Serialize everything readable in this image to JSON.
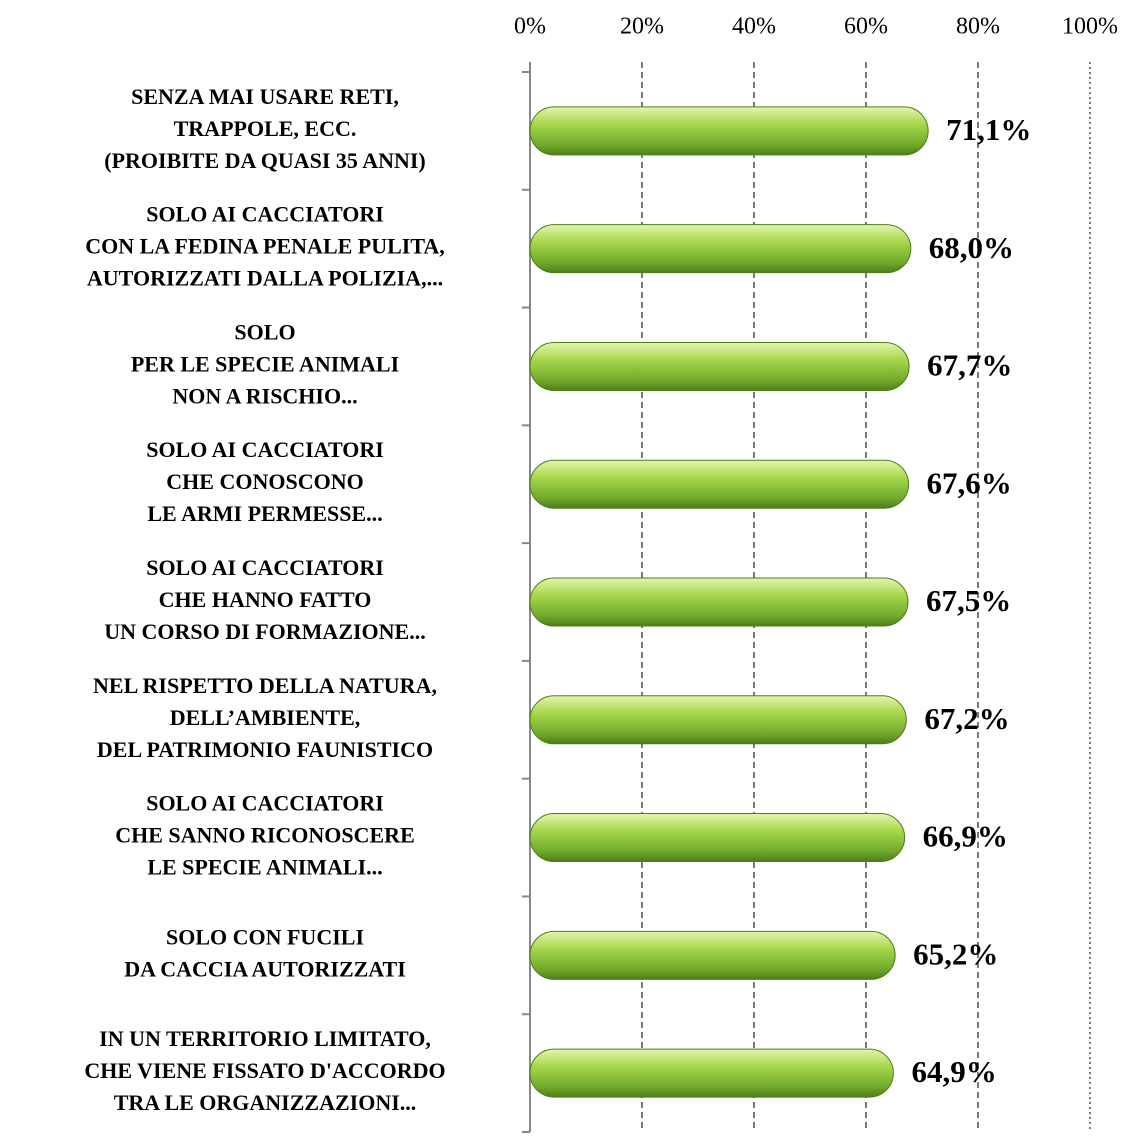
{
  "chart_data": {
    "type": "barh",
    "categories": [
      "SENZA MAI USARE RETI,\nTRAPPOLE, ECC.\n(PROIBITE DA QUASI 35 ANNI)",
      "SOLO AI CACCIATORI\nCON LA FEDINA PENALE PULITA,\nAUTORIZZATI DALLA POLIZIA,...",
      "SOLO\nPER LE SPECIE ANIMALI\nNON A RISCHIO...",
      "SOLO AI CACCIATORI\nCHE CONOSCONO\nLE ARMI PERMESSE...",
      "SOLO AI CACCIATORI\nCHE HANNO FATTO\nUN CORSO DI FORMAZIONE...",
      "NEL RISPETTO DELLA NATURA,\nDELL’AMBIENTE,\nDEL PATRIMONIO FAUNISTICO",
      "SOLO AI CACCIATORI\nCHE SANNO RICONOSCERE\nLE SPECIE ANIMALI...",
      "SOLO CON FUCILI\nDA CACCIA AUTORIZZATI",
      "IN UN TERRITORIO LIMITATO,\nCHE VIENE FISSATO D'ACCORDO\nTRA LE ORGANIZZAZIONI..."
    ],
    "values": [
      71.1,
      68.0,
      67.7,
      67.6,
      67.5,
      67.2,
      66.9,
      65.2,
      64.9
    ],
    "value_labels": [
      "71,1%",
      "68,0%",
      "67,7%",
      "67,6%",
      "67,5%",
      "67,2%",
      "66,9%",
      "65,2%",
      "64,9%"
    ],
    "color": "#8cc63f",
    "xlim": [
      0,
      100
    ],
    "xticks": [
      {
        "value": 0,
        "label": "0%"
      },
      {
        "value": 20,
        "label": "20%"
      },
      {
        "value": 40,
        "label": "40%"
      },
      {
        "value": 60,
        "label": "60%"
      },
      {
        "value": 80,
        "label": "80%"
      },
      {
        "value": 100,
        "label": "100%"
      }
    ],
    "grid": true
  }
}
